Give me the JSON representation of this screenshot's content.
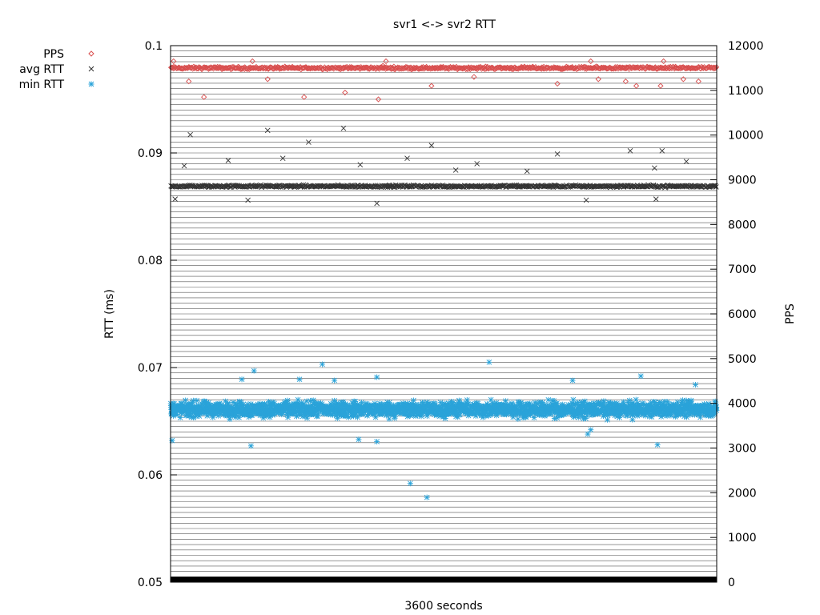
{
  "chart_data": {
    "type": "scatter",
    "title": "svr1 <-> svr2 RTT",
    "xlabel": "3600 seconds",
    "ylabel": "RTT (ms)",
    "y2label": "PPS",
    "xlim": [
      0,
      3600
    ],
    "ylim": [
      0.05,
      0.1
    ],
    "y2lim": [
      0,
      12000
    ],
    "y_ticks": [
      "0.05",
      "0.06",
      "0.07",
      "0.08",
      "0.09",
      "0.1"
    ],
    "y2_ticks": [
      "0",
      "1000",
      "2000",
      "3000",
      "4000",
      "5000",
      "6000",
      "7000",
      "8000",
      "9000",
      "10000",
      "11000",
      "12000"
    ],
    "grid": true,
    "legend_position": "top-left-outside",
    "series": [
      {
        "name": "PPS",
        "axis": "y2",
        "marker": "diamond",
        "color": "#d95050",
        "baseline": 11500,
        "spread": 40,
        "outliers": [
          [
            120,
            11200
          ],
          [
            220,
            10850
          ],
          [
            640,
            11250
          ],
          [
            880,
            10850
          ],
          [
            1150,
            10950
          ],
          [
            1370,
            10800
          ],
          [
            1400,
            11550
          ],
          [
            1720,
            11100
          ],
          [
            2000,
            11300
          ],
          [
            2550,
            11150
          ],
          [
            2820,
            11250
          ],
          [
            3000,
            11200
          ],
          [
            3070,
            11100
          ],
          [
            3230,
            11100
          ],
          [
            3250,
            11650
          ],
          [
            3380,
            11250
          ],
          [
            3480,
            11200
          ],
          [
            20,
            11650
          ],
          [
            540,
            11650
          ],
          [
            1420,
            11650
          ],
          [
            2770,
            11650
          ]
        ]
      },
      {
        "name": "avg RTT",
        "axis": "y",
        "marker": "cross",
        "color": "#333333",
        "baseline": 0.0869,
        "spread": 0.00015,
        "outliers": [
          [
            130,
            0.0917
          ],
          [
            90,
            0.0888
          ],
          [
            640,
            0.0921
          ],
          [
            1140,
            0.0923
          ],
          [
            1720,
            0.0907
          ],
          [
            380,
            0.0893
          ],
          [
            910,
            0.091
          ],
          [
            1250,
            0.0889
          ],
          [
            1560,
            0.0895
          ],
          [
            2020,
            0.089
          ],
          [
            2550,
            0.0899
          ],
          [
            3030,
            0.0902
          ],
          [
            3240,
            0.0902
          ],
          [
            3400,
            0.0892
          ],
          [
            3190,
            0.0886
          ],
          [
            510,
            0.0856
          ],
          [
            1360,
            0.0853
          ],
          [
            2740,
            0.0856
          ],
          [
            3200,
            0.0857
          ],
          [
            30,
            0.0857
          ],
          [
            2350,
            0.0883
          ],
          [
            740,
            0.0895
          ],
          [
            1880,
            0.0884
          ]
        ]
      },
      {
        "name": "min RTT",
        "axis": "y",
        "marker": "star",
        "color": "#2aa3d9",
        "baseline": 0.0661,
        "spread": 0.0009,
        "outliers": [
          [
            1580,
            0.0592
          ],
          [
            1690,
            0.0579
          ],
          [
            2100,
            0.0705
          ],
          [
            1000,
            0.0703
          ],
          [
            550,
            0.0697
          ],
          [
            1360,
            0.0691
          ],
          [
            3100,
            0.0692
          ],
          [
            1240,
            0.0633
          ],
          [
            1360,
            0.0631
          ],
          [
            530,
            0.0627
          ],
          [
            3210,
            0.0628
          ],
          [
            10,
            0.0632
          ],
          [
            2750,
            0.0638
          ],
          [
            2770,
            0.0642
          ],
          [
            470,
            0.0689
          ],
          [
            850,
            0.0689
          ],
          [
            1080,
            0.0688
          ],
          [
            2650,
            0.0688
          ],
          [
            3460,
            0.0684
          ]
        ]
      }
    ]
  }
}
